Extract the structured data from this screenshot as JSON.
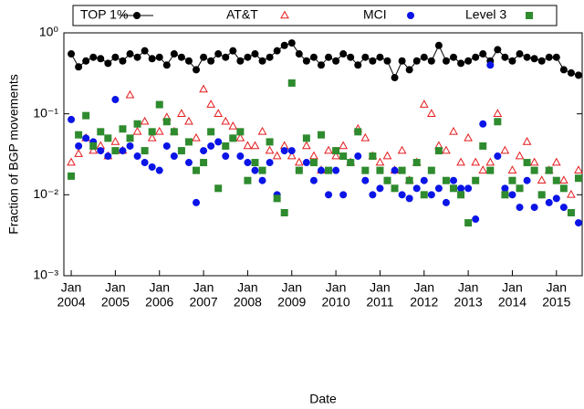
{
  "chart_data": {
    "type": "scatter",
    "x_label": "Date",
    "y_label": "Fraction of BGP movements",
    "log_y": true,
    "xlim": [
      "2003-11",
      "2015-08"
    ],
    "ylim": [
      0.001,
      1
    ],
    "yticks": [
      {
        "value": 0.001,
        "label": "10⁻³"
      },
      {
        "value": 0.01,
        "label": "10⁻²"
      },
      {
        "value": 0.1,
        "label": "10⁻¹"
      },
      {
        "value": 1,
        "label": "10⁰"
      }
    ],
    "xticks": [
      {
        "value": "2004-01",
        "label": [
          "Jan",
          "2004"
        ]
      },
      {
        "value": "2005-01",
        "label": [
          "Jan",
          "2005"
        ]
      },
      {
        "value": "2006-01",
        "label": [
          "Jan",
          "2006"
        ]
      },
      {
        "value": "2007-01",
        "label": [
          "Jan",
          "2007"
        ]
      },
      {
        "value": "2008-01",
        "label": [
          "Jan",
          "2008"
        ]
      },
      {
        "value": "2009-01",
        "label": [
          "Jan",
          "2009"
        ]
      },
      {
        "value": "2010-01",
        "label": [
          "Jan",
          "2010"
        ]
      },
      {
        "value": "2011-01",
        "label": [
          "Jan",
          "2011"
        ]
      },
      {
        "value": "2012-01",
        "label": [
          "Jan",
          "2012"
        ]
      },
      {
        "value": "2013-01",
        "label": [
          "Jan",
          "2013"
        ]
      },
      {
        "value": "2014-01",
        "label": [
          "Jan",
          "2014"
        ]
      },
      {
        "value": "2015-01",
        "label": [
          "Jan",
          "2015"
        ]
      }
    ],
    "x": [
      "2004-01",
      "2004-03",
      "2004-05",
      "2004-07",
      "2004-09",
      "2004-11",
      "2005-01",
      "2005-03",
      "2005-05",
      "2005-07",
      "2005-09",
      "2005-11",
      "2006-01",
      "2006-03",
      "2006-05",
      "2006-07",
      "2006-09",
      "2006-11",
      "2007-01",
      "2007-03",
      "2007-05",
      "2007-07",
      "2007-09",
      "2007-11",
      "2008-01",
      "2008-03",
      "2008-05",
      "2008-07",
      "2008-09",
      "2008-11",
      "2009-01",
      "2009-03",
      "2009-05",
      "2009-07",
      "2009-09",
      "2009-11",
      "2010-01",
      "2010-03",
      "2010-05",
      "2010-07",
      "2010-09",
      "2010-11",
      "2011-01",
      "2011-03",
      "2011-05",
      "2011-07",
      "2011-09",
      "2011-11",
      "2012-01",
      "2012-03",
      "2012-05",
      "2012-07",
      "2012-09",
      "2012-11",
      "2013-01",
      "2013-03",
      "2013-05",
      "2013-07",
      "2013-09",
      "2013-11",
      "2014-01",
      "2014-03",
      "2014-05",
      "2014-07",
      "2014-09",
      "2014-11",
      "2015-01",
      "2015-03",
      "2015-05",
      "2015-07"
    ],
    "series": [
      {
        "name": "TOP 1%",
        "color": "#000000",
        "marker": "circle",
        "line": true,
        "values": [
          0.55,
          0.38,
          0.45,
          0.5,
          0.48,
          0.42,
          0.5,
          0.45,
          0.55,
          0.5,
          0.6,
          0.48,
          0.5,
          0.4,
          0.55,
          0.5,
          0.45,
          0.35,
          0.5,
          0.45,
          0.55,
          0.5,
          0.6,
          0.45,
          0.5,
          0.55,
          0.45,
          0.5,
          0.6,
          0.7,
          0.75,
          0.55,
          0.45,
          0.5,
          0.4,
          0.5,
          0.45,
          0.55,
          0.5,
          0.4,
          0.5,
          0.45,
          0.5,
          0.45,
          0.28,
          0.45,
          0.35,
          0.45,
          0.5,
          0.45,
          0.7,
          0.45,
          0.5,
          0.42,
          0.45,
          0.5,
          0.55,
          0.45,
          0.62,
          0.5,
          0.45,
          0.55,
          0.5,
          0.48,
          0.45,
          0.5,
          0.5,
          0.35,
          0.32,
          0.3
        ]
      },
      {
        "name": "AT&T",
        "color": "#e41a1c",
        "marker": "triangle",
        "line": false,
        "values": [
          0.025,
          0.032,
          0.05,
          0.035,
          0.04,
          0.03,
          0.045,
          0.035,
          0.17,
          0.06,
          0.08,
          0.05,
          0.06,
          0.09,
          0.06,
          0.1,
          0.08,
          0.05,
          0.2,
          0.13,
          0.1,
          0.08,
          0.07,
          0.05,
          0.04,
          0.04,
          0.06,
          0.035,
          0.03,
          0.04,
          0.03,
          0.025,
          0.04,
          0.03,
          0.02,
          0.035,
          0.03,
          0.04,
          0.025,
          0.065,
          0.05,
          0.03,
          0.025,
          0.03,
          0.02,
          0.035,
          0.015,
          0.025,
          0.13,
          0.1,
          0.04,
          0.035,
          0.06,
          0.025,
          0.05,
          0.025,
          0.02,
          0.025,
          0.1,
          0.035,
          0.02,
          0.03,
          0.045,
          0.025,
          0.015,
          0.02,
          0.025,
          0.015,
          0.01,
          0.02
        ]
      },
      {
        "name": "MCI",
        "color": "#0a14e6",
        "marker": "circle",
        "line": false,
        "values": [
          0.085,
          0.04,
          0.05,
          0.045,
          0.035,
          0.03,
          0.15,
          0.035,
          0.04,
          0.03,
          0.025,
          0.022,
          0.02,
          0.04,
          0.03,
          0.035,
          0.025,
          0.008,
          0.035,
          0.04,
          0.045,
          0.03,
          0.05,
          0.03,
          0.025,
          0.02,
          0.015,
          0.025,
          0.01,
          0.035,
          0.035,
          0.02,
          0.025,
          0.015,
          0.02,
          0.01,
          0.02,
          0.01,
          0.025,
          0.03,
          0.015,
          0.01,
          0.012,
          0.015,
          0.02,
          0.01,
          0.009,
          0.012,
          0.015,
          0.01,
          0.012,
          0.008,
          0.015,
          0.012,
          0.012,
          0.005,
          0.075,
          0.4,
          0.03,
          0.012,
          0.01,
          0.007,
          0.015,
          0.007,
          0.01,
          0.008,
          0.009,
          0.007,
          0.006,
          0.0045
        ]
      },
      {
        "name": "Level 3",
        "color": "#2e8b2e",
        "marker": "square",
        "line": false,
        "values": [
          0.017,
          0.055,
          0.095,
          0.04,
          0.06,
          0.05,
          0.035,
          0.065,
          0.05,
          0.075,
          0.035,
          0.06,
          0.13,
          0.08,
          0.06,
          0.035,
          0.045,
          0.02,
          0.025,
          0.06,
          0.012,
          0.04,
          0.05,
          0.06,
          0.015,
          0.025,
          0.02,
          0.045,
          0.009,
          0.006,
          0.24,
          0.02,
          0.05,
          0.025,
          0.055,
          0.02,
          0.035,
          0.03,
          0.025,
          0.06,
          0.02,
          0.03,
          0.02,
          0.015,
          0.012,
          0.02,
          0.015,
          0.025,
          0.01,
          0.02,
          0.035,
          0.015,
          0.012,
          0.01,
          0.0045,
          0.015,
          0.04,
          0.02,
          0.08,
          0.01,
          0.015,
          0.012,
          0.025,
          0.02,
          0.01,
          0.02,
          0.015,
          0.012,
          0.006,
          0.016
        ]
      }
    ]
  }
}
